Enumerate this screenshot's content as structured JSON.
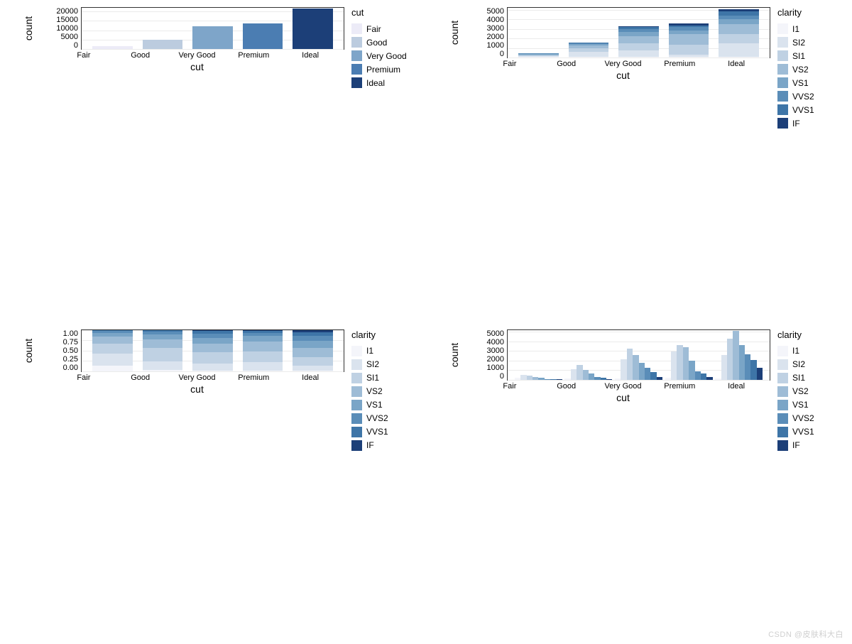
{
  "watermark": "CSDN @皮肤科大白",
  "cut_categories": [
    "Fair",
    "Good",
    "Very Good",
    "Premium",
    "Ideal"
  ],
  "clarity_levels": [
    "I1",
    "SI2",
    "SI1",
    "VS2",
    "VS1",
    "VVS2",
    "VVS1",
    "IF"
  ],
  "colors_cut": {
    "Fair": "#ecebf7",
    "Good": "#bcccdf",
    "Very Good": "#7ea5c9",
    "Premium": "#4b7db2",
    "Ideal": "#1c3f78"
  },
  "colors_clarity": {
    "I1": "#f4f5fa",
    "SI2": "#dae3ee",
    "SI1": "#bfd1e3",
    "VS2": "#9ebcd6",
    "VS1": "#7aa5c7",
    "VVS2": "#5a8db8",
    "VVS1": "#3e75a7",
    "IF": "#1c3f78"
  },
  "panel_tl": {
    "type": "bar",
    "ylabel": "count",
    "xlabel": "cut",
    "legend_title": "cut",
    "ylim": [
      0,
      22000
    ],
    "yticks": [
      0,
      5000,
      10000,
      15000,
      20000
    ],
    "values": {
      "Fair": 1610,
      "Good": 4906,
      "Very Good": 12082,
      "Premium": 13791,
      "Ideal": 21551
    }
  },
  "panel_tr": {
    "type": "stacked-bar",
    "ylabel": "count",
    "xlabel": "cut",
    "legend_title": "clarity",
    "ylim": [
      0,
      5200
    ],
    "yticks": [
      0,
      1000,
      2000,
      3000,
      4000,
      5000
    ],
    "stacks": {
      "Fair": {
        "I1": 80,
        "SI2": 80,
        "SI1": 80,
        "VS2": 70,
        "VS1": 60,
        "VVS2": 50,
        "VVS1": 40,
        "IF": 10
      },
      "Good": {
        "I1": 50,
        "SI2": 520,
        "SI1": 400,
        "VS2": 300,
        "VS1": 120,
        "VVS2": 90,
        "VVS1": 60,
        "IF": 40
      },
      "Very Good": {
        "I1": 50,
        "SI2": 660,
        "SI1": 750,
        "VS2": 800,
        "VS1": 440,
        "VVS2": 290,
        "VVS1": 190,
        "IF": 70
      },
      "Premium": {
        "I1": 70,
        "SI2": 250,
        "SI1": 1000,
        "VS2": 1100,
        "VS1": 400,
        "VVS2": 350,
        "VVS1": 200,
        "IF": 230
      },
      "Ideal": {
        "I1": 60,
        "SI2": 1400,
        "SI1": 1000,
        "VS2": 1000,
        "VS1": 550,
        "VVS2": 400,
        "VVS1": 440,
        "IF": 230
      }
    }
  },
  "panel_bl": {
    "type": "stacked-bar-fill",
    "ylabel": "count",
    "xlabel": "cut",
    "legend_title": "clarity",
    "ylim": [
      0,
      1.0
    ],
    "yticks": [
      "0.00",
      "0.25",
      "0.50",
      "0.75",
      "1.00"
    ],
    "proportions": {
      "Fair": {
        "I1": 0.13,
        "SI2": 0.29,
        "SI1": 0.25,
        "VS2": 0.16,
        "VS1": 0.1,
        "VVS2": 0.04,
        "VVS1": 0.02,
        "IF": 0.01
      },
      "Good": {
        "I1": 0.02,
        "SI2": 0.22,
        "SI1": 0.32,
        "VS2": 0.2,
        "VS1": 0.13,
        "VVS2": 0.06,
        "VVS1": 0.04,
        "IF": 0.01
      },
      "Very Good": {
        "I1": 0.01,
        "SI2": 0.17,
        "SI1": 0.27,
        "VS2": 0.21,
        "VS1": 0.15,
        "VVS2": 0.1,
        "VVS1": 0.07,
        "IF": 0.02
      },
      "Premium": {
        "I1": 0.01,
        "SI2": 0.21,
        "SI1": 0.26,
        "VS2": 0.24,
        "VS1": 0.14,
        "VVS2": 0.06,
        "VVS1": 0.05,
        "IF": 0.02
      },
      "Ideal": {
        "I1": 0.01,
        "SI2": 0.12,
        "SI1": 0.2,
        "VS2": 0.23,
        "VS1": 0.17,
        "VVS2": 0.12,
        "VVS1": 0.09,
        "IF": 0.06
      }
    }
  },
  "panel_br": {
    "type": "dodged-bar",
    "ylabel": "count",
    "xlabel": "cut",
    "legend_title": "clarity",
    "ylim": [
      0,
      5200
    ],
    "yticks": [
      0,
      1000,
      2000,
      3000,
      4000,
      5000
    ],
    "groups": {
      "Fair": {
        "I1": 210,
        "SI2": 466,
        "SI1": 408,
        "VS2": 261,
        "VS1": 170,
        "VVS2": 69,
        "VVS1": 17,
        "IF": 9
      },
      "Good": {
        "I1": 96,
        "SI2": 1081,
        "SI1": 1560,
        "VS2": 978,
        "VS1": 648,
        "VVS2": 286,
        "VVS1": 186,
        "IF": 71
      },
      "Very Good": {
        "I1": 84,
        "SI2": 2100,
        "SI1": 3240,
        "VS2": 2591,
        "VS1": 1775,
        "VVS2": 1235,
        "VVS1": 789,
        "IF": 268
      },
      "Premium": {
        "I1": 205,
        "SI2": 2949,
        "SI1": 3575,
        "VS2": 3357,
        "VS1": 1989,
        "VVS2": 870,
        "VVS1": 616,
        "IF": 230
      },
      "Ideal": {
        "I1": 146,
        "SI2": 2598,
        "SI1": 4282,
        "VS2": 5071,
        "VS1": 3589,
        "VVS2": 2606,
        "VVS1": 2047,
        "IF": 1212
      }
    }
  }
}
